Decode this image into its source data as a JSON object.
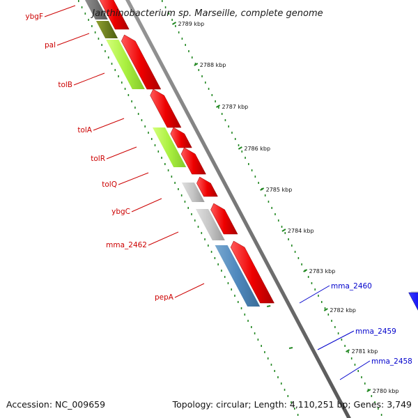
{
  "title": "Janthinobacterium sp. Marseille, complete genome",
  "footer": {
    "accession": "Accession: NC_009659",
    "summary": "Topology: circular; Length: 4,110,251 bp; Genes: 3,749"
  },
  "colors": {
    "left_labels": "#cc0000",
    "right_labels": "#0000cc",
    "ticks": "#228822",
    "backbone": "#888888"
  },
  "left_genes": [
    {
      "name": "ybgF"
    },
    {
      "name": "pal"
    },
    {
      "name": "tolB"
    },
    {
      "name": "tolA"
    },
    {
      "name": "tolR"
    },
    {
      "name": "tolQ"
    },
    {
      "name": "ybgC"
    },
    {
      "name": "mma_2462"
    },
    {
      "name": "pepA"
    }
  ],
  "right_genes": [
    {
      "name": "mma_2460"
    },
    {
      "name": "mma_2459"
    },
    {
      "name": "mma_2458"
    }
  ],
  "scale": [
    {
      "label": "2789 kbp"
    },
    {
      "label": "2788 kbp"
    },
    {
      "label": "2787 kbp"
    },
    {
      "label": "2786 kbp"
    },
    {
      "label": "2785 kbp"
    },
    {
      "label": "2784 kbp"
    },
    {
      "label": "2783 kbp"
    },
    {
      "label": "2782 kbp"
    },
    {
      "label": "2781 kbp"
    },
    {
      "label": "2780 kbp"
    }
  ]
}
